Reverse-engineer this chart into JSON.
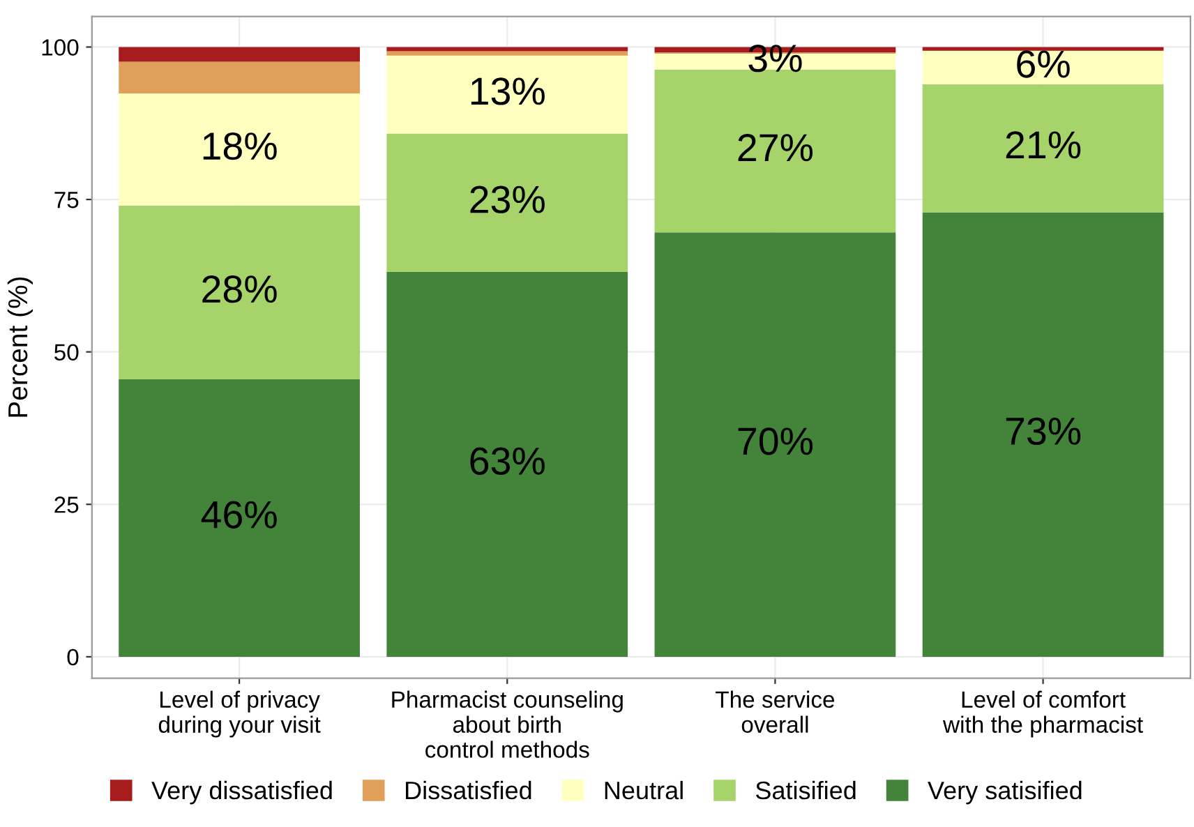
{
  "chart_data": {
    "type": "bar",
    "stacked": true,
    "ylabel": "Percent (%)",
    "categories": [
      "Level of privacy\nduring your visit",
      "Pharmacist counseling\nabout birth\ncontrol methods",
      "The service\noverall",
      "Level of comfort\nwith the pharmacist"
    ],
    "series": [
      {
        "name": "Very satisified",
        "color": "#43843a",
        "values": [
          45.5,
          63.1,
          69.6,
          72.9
        ],
        "value_labels": [
          "46%",
          "63%",
          "70%",
          "73%"
        ]
      },
      {
        "name": "Satisified",
        "color": "#a6d46a",
        "values": [
          28.5,
          22.7,
          26.7,
          21.0
        ],
        "value_labels": [
          "28%",
          "23%",
          "27%",
          "21%"
        ]
      },
      {
        "name": "Neutral",
        "color": "#ffffc0",
        "values": [
          18.4,
          12.8,
          2.6,
          5.5
        ],
        "value_labels": [
          "18%",
          "13%",
          "3%",
          "6%"
        ]
      },
      {
        "name": "Dissatisfied",
        "color": "#e0a05a",
        "values": [
          5.2,
          0.7,
          0.2,
          0
        ]
      },
      {
        "name": "Very dissatisfied",
        "color": "#a61c1c",
        "values": [
          2.4,
          0.7,
          0.9,
          0.6
        ]
      }
    ],
    "ylim": [
      -3.5,
      105
    ],
    "yticks": [
      0,
      25,
      50,
      75,
      100
    ],
    "grid": true,
    "legend": "bottom"
  }
}
